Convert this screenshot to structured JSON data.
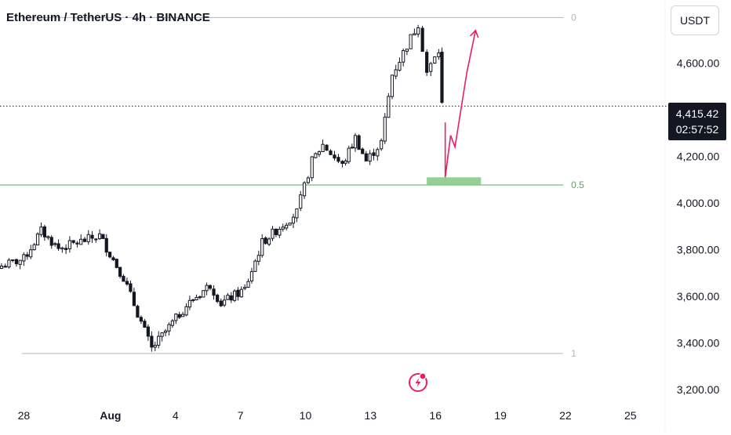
{
  "header": {
    "title": "Ethereum / TetherUS · 4h · BINANCE",
    "currency": "USDT"
  },
  "price_tag": {
    "price": "4,415.42",
    "countdown": "02:57:52"
  },
  "colors": {
    "up": "#131722",
    "down": "#131722",
    "fib_line": "#b2b5be",
    "fib_half": "#4caf50",
    "zone": "#81c784",
    "path": "#e91e63",
    "axis_text": "#131722"
  },
  "chart_data": {
    "type": "candlestick",
    "title": "Ethereum / TetherUS · 4h · BINANCE",
    "x_ticks": [
      "28",
      "Aug",
      "4",
      "7",
      "10",
      "13",
      "16",
      "19",
      "22",
      "25"
    ],
    "y_ticks": [
      "3,200.00",
      "3,400.00",
      "3,600.00",
      "3,800.00",
      "4,000.00",
      "4,200.00",
      "4,400.00",
      "4,600.00"
    ],
    "y_tick_values": [
      3200,
      3400,
      3600,
      3800,
      4000,
      4200,
      4400,
      4600
    ],
    "x_tick_days": [
      0,
      4,
      7,
      10,
      13,
      16,
      19,
      22,
      25,
      28
    ],
    "ylim": [
      3150,
      4870
    ],
    "xlim_days": [
      -1.1,
      29.6
    ],
    "current_price": 4415.42,
    "fib_levels": [
      {
        "label": "0",
        "price": 4795
      },
      {
        "label": "0.5",
        "price": 4077
      },
      {
        "label": "1",
        "price": 3355
      }
    ],
    "target_zone": {
      "x0_day": 18.6,
      "x1_day": 21.1,
      "y0": 4077,
      "y1": 4110
    },
    "projected_path": [
      {
        "day": 19.45,
        "price": 4345
      },
      {
        "day": 19.45,
        "price": 4110
      },
      {
        "day": 19.7,
        "price": 4290
      },
      {
        "day": 19.9,
        "price": 4240
      },
      {
        "day": 20.45,
        "price": 4560
      },
      {
        "day": 20.85,
        "price": 4740
      }
    ],
    "candles_segments": [
      {
        "start_day": -1.2,
        "end_day": 0.0,
        "start": 3725,
        "end": 3760
      },
      {
        "start_day": 0.0,
        "end_day": 0.8,
        "start": 3760,
        "end": 3880
      },
      {
        "start_day": 0.8,
        "end_day": 1.6,
        "start": 3880,
        "end": 3805
      },
      {
        "start_day": 1.6,
        "end_day": 3.5,
        "start": 3805,
        "end": 3860
      },
      {
        "start_day": 3.5,
        "end_day": 4.6,
        "start": 3860,
        "end": 3680
      },
      {
        "start_day": 4.6,
        "end_day": 5.9,
        "start": 3680,
        "end": 3375
      },
      {
        "start_day": 5.9,
        "end_day": 7.5,
        "start": 3375,
        "end": 3560
      },
      {
        "start_day": 7.5,
        "end_day": 8.6,
        "start": 3560,
        "end": 3650
      },
      {
        "start_day": 8.6,
        "end_day": 9.1,
        "start": 3650,
        "end": 3570
      },
      {
        "start_day": 9.1,
        "end_day": 10.2,
        "start": 3570,
        "end": 3630
      },
      {
        "start_day": 10.2,
        "end_day": 11.0,
        "start": 3630,
        "end": 3830
      },
      {
        "start_day": 11.0,
        "end_day": 12.6,
        "start": 3830,
        "end": 3960
      },
      {
        "start_day": 12.6,
        "end_day": 13.3,
        "start": 3960,
        "end": 4180
      },
      {
        "start_day": 13.3,
        "end_day": 13.8,
        "start": 4180,
        "end": 4250
      },
      {
        "start_day": 13.8,
        "end_day": 14.7,
        "start": 4250,
        "end": 4160
      },
      {
        "start_day": 14.7,
        "end_day": 15.3,
        "start": 4160,
        "end": 4280
      },
      {
        "start_day": 15.3,
        "end_day": 15.8,
        "start": 4280,
        "end": 4180
      },
      {
        "start_day": 15.8,
        "end_day": 16.5,
        "start": 4180,
        "end": 4260
      },
      {
        "start_day": 16.5,
        "end_day": 17.0,
        "start": 4260,
        "end": 4550
      },
      {
        "start_day": 17.0,
        "end_day": 18.2,
        "start": 4550,
        "end": 4770
      },
      {
        "start_day": 18.2,
        "end_day": 18.6,
        "start": 4770,
        "end": 4560
      },
      {
        "start_day": 18.6,
        "end_day": 19.15,
        "start": 4560,
        "end": 4650
      },
      {
        "start_day": 19.15,
        "end_day": 19.3,
        "start": 4650,
        "end": 4420
      }
    ]
  }
}
